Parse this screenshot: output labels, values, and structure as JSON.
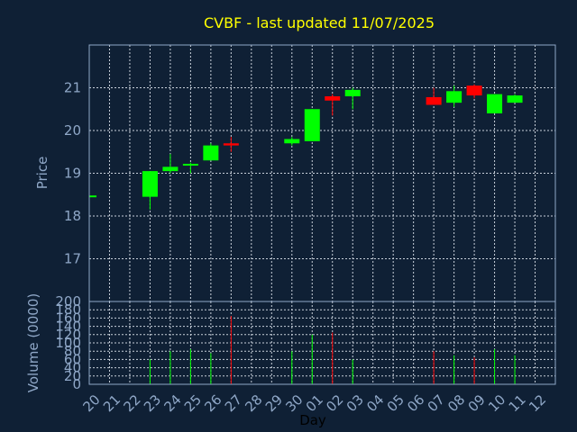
{
  "chart_data": {
    "type": "candlestick",
    "title": "CVBF - last updated 11/07/2025",
    "xlabel": "Day",
    "x_tick_labels": [
      "20",
      "21",
      "22",
      "23",
      "24",
      "25",
      "26",
      "27",
      "28",
      "29",
      "30",
      "01",
      "02",
      "03",
      "04",
      "05",
      "06",
      "07",
      "08",
      "09",
      "10",
      "11",
      "12"
    ],
    "price_panel": {
      "ylabel": "Price",
      "ylim": [
        16,
        22
      ],
      "yticks": [
        17,
        18,
        19,
        20,
        21
      ],
      "grid": true
    },
    "volume_panel": {
      "ylabel": "Volume (0000)",
      "ylim": [
        0,
        200
      ],
      "yticks": [
        0,
        20,
        40,
        60,
        80,
        100,
        120,
        140,
        160,
        180,
        200
      ],
      "grid": true
    },
    "colors": {
      "up": "#00ff00",
      "down": "#ff0000",
      "title": "#ffff00",
      "axis": "#8fa7c7",
      "background": "#0f2035"
    },
    "candles": [
      {
        "day": "20",
        "open": 18.48,
        "high": 18.48,
        "low": 18.48,
        "close": 18.48,
        "volume": 0
      },
      {
        "day": "23",
        "open": 18.45,
        "high": 19.05,
        "low": 18.15,
        "close": 19.05,
        "volume": 60
      },
      {
        "day": "24",
        "open": 19.05,
        "high": 19.45,
        "low": 19.0,
        "close": 19.15,
        "volume": 80
      },
      {
        "day": "25",
        "open": 19.18,
        "high": 19.25,
        "low": 19.0,
        "close": 19.22,
        "volume": 85
      },
      {
        "day": "26",
        "open": 19.3,
        "high": 19.7,
        "low": 19.3,
        "close": 19.65,
        "volume": 75
      },
      {
        "day": "27",
        "open": 19.7,
        "high": 19.85,
        "low": 19.5,
        "close": 19.65,
        "volume": 165
      },
      {
        "day": "30",
        "open": 19.7,
        "high": 19.85,
        "low": 19.65,
        "close": 19.8,
        "volume": 80
      },
      {
        "day": "01",
        "open": 19.75,
        "high": 20.5,
        "low": 19.75,
        "close": 20.5,
        "volume": 120
      },
      {
        "day": "02",
        "open": 20.8,
        "high": 20.85,
        "low": 20.35,
        "close": 20.7,
        "volume": 125
      },
      {
        "day": "03",
        "open": 20.8,
        "high": 21.0,
        "low": 20.5,
        "close": 20.95,
        "volume": 60
      },
      {
        "day": "07",
        "open": 20.78,
        "high": 21.0,
        "low": 20.6,
        "close": 20.6,
        "volume": 80
      },
      {
        "day": "08",
        "open": 20.65,
        "high": 21.05,
        "low": 20.55,
        "close": 20.92,
        "volume": 70
      },
      {
        "day": "09",
        "open": 21.05,
        "high": 21.08,
        "low": 20.75,
        "close": 20.82,
        "volume": 65
      },
      {
        "day": "10",
        "open": 20.4,
        "high": 20.85,
        "low": 20.4,
        "close": 20.85,
        "volume": 85
      },
      {
        "day": "11",
        "open": 20.65,
        "high": 20.85,
        "low": 20.65,
        "close": 20.82,
        "volume": 70
      }
    ]
  }
}
